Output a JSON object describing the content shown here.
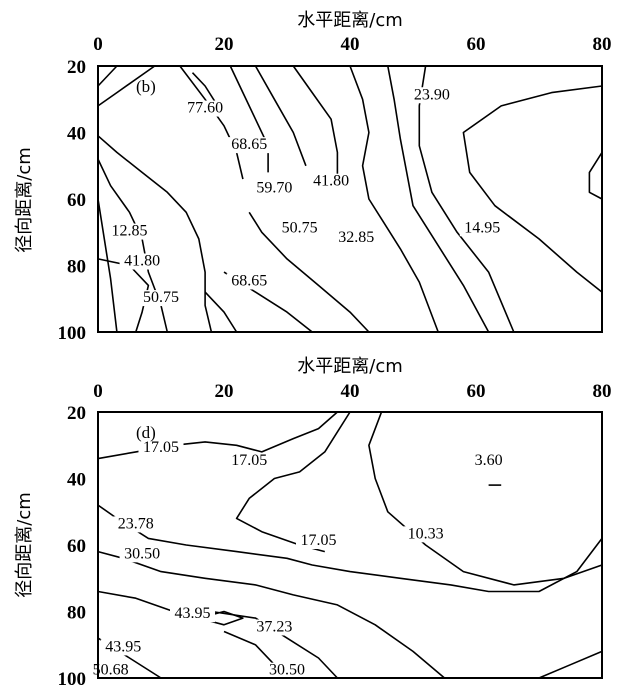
{
  "chart_data": [
    {
      "type": "contour",
      "panel_label": "(b)",
      "xlabel": "水平距离/cm",
      "ylabel": "径向距离/cm",
      "x_ticks": [
        "0",
        "20",
        "40",
        "60",
        "80"
      ],
      "y_ticks": [
        "20",
        "40",
        "60",
        "80",
        "100"
      ],
      "xlim": [
        0,
        80
      ],
      "ylim": [
        20,
        100
      ],
      "x_axis_position": "top",
      "y_inverted": true,
      "contour_labels": [
        {
          "text": "77.60",
          "x": 17,
          "y": 34
        },
        {
          "text": "68.65",
          "x": 24,
          "y": 45
        },
        {
          "text": "59.70",
          "x": 28,
          "y": 58
        },
        {
          "text": "41.80",
          "x": 37,
          "y": 56
        },
        {
          "text": "50.75",
          "x": 32,
          "y": 70
        },
        {
          "text": "32.85",
          "x": 41,
          "y": 73
        },
        {
          "text": "23.90",
          "x": 53,
          "y": 30
        },
        {
          "text": "14.95",
          "x": 61,
          "y": 70
        },
        {
          "text": "12.85",
          "x": 5,
          "y": 71
        },
        {
          "text": "41.80",
          "x": 7,
          "y": 80
        },
        {
          "text": "50.75",
          "x": 10,
          "y": 91
        },
        {
          "text": "68.65",
          "x": 24,
          "y": 86
        }
      ],
      "contours": [
        [
          [
            3,
            20
          ],
          [
            0,
            26
          ]
        ],
        [
          [
            9,
            20
          ],
          [
            3,
            28
          ],
          [
            0,
            32
          ]
        ],
        [
          [
            0,
            41
          ],
          [
            3,
            46
          ],
          [
            7,
            52
          ],
          [
            11,
            58
          ],
          [
            14,
            64
          ],
          [
            16,
            72
          ],
          [
            17,
            82
          ],
          [
            17,
            92
          ],
          [
            18,
            100
          ]
        ],
        [
          [
            0,
            48
          ],
          [
            2,
            56
          ],
          [
            5,
            64
          ],
          [
            7,
            72
          ],
          [
            8,
            82
          ],
          [
            10,
            92
          ],
          [
            11,
            100
          ]
        ],
        [
          [
            0,
            60
          ],
          [
            1,
            72
          ],
          [
            2,
            84
          ],
          [
            3,
            100
          ]
        ],
        [
          [
            13,
            20
          ],
          [
            17,
            30
          ],
          [
            20,
            38
          ],
          [
            22,
            46
          ],
          [
            23,
            54
          ]
        ],
        [
          [
            21,
            20
          ],
          [
            23,
            28
          ],
          [
            25,
            36
          ],
          [
            27,
            44
          ],
          [
            27,
            52
          ]
        ],
        [
          [
            25,
            20
          ],
          [
            28,
            30
          ],
          [
            31,
            40
          ],
          [
            33,
            50
          ]
        ],
        [
          [
            31,
            20
          ],
          [
            34,
            28
          ],
          [
            37,
            36
          ],
          [
            38,
            46
          ],
          [
            38,
            54
          ]
        ],
        [
          [
            40,
            20
          ],
          [
            42,
            30
          ],
          [
            43,
            40
          ],
          [
            42,
            50
          ],
          [
            43,
            60
          ],
          [
            48,
            75
          ],
          [
            51,
            85
          ],
          [
            54,
            100
          ]
        ],
        [
          [
            46,
            20
          ],
          [
            47,
            30
          ],
          [
            48,
            42
          ],
          [
            49,
            52
          ],
          [
            50,
            62
          ],
          [
            54,
            74
          ],
          [
            58,
            86
          ],
          [
            62,
            100
          ]
        ],
        [
          [
            52,
            20
          ],
          [
            51,
            32
          ],
          [
            51,
            44
          ],
          [
            53,
            58
          ],
          [
            57,
            70
          ],
          [
            62,
            82
          ],
          [
            66,
            100
          ]
        ],
        [
          [
            80,
            26
          ],
          [
            72,
            28
          ],
          [
            64,
            32
          ],
          [
            58,
            40
          ],
          [
            59,
            52
          ],
          [
            63,
            62
          ],
          [
            70,
            72
          ],
          [
            76,
            82
          ],
          [
            80,
            88
          ]
        ],
        [
          [
            80,
            46
          ],
          [
            78,
            52
          ],
          [
            78,
            58
          ],
          [
            80,
            60
          ]
        ],
        [
          [
            0,
            78
          ],
          [
            5,
            80
          ],
          [
            8,
            86
          ],
          [
            7,
            94
          ],
          [
            6,
            100
          ]
        ],
        [
          [
            17,
            88
          ],
          [
            20,
            94
          ],
          [
            22,
            100
          ]
        ],
        [
          [
            20,
            82
          ],
          [
            25,
            88
          ],
          [
            30,
            94
          ],
          [
            34,
            100
          ]
        ],
        [
          [
            24,
            64
          ],
          [
            26,
            70
          ],
          [
            30,
            78
          ],
          [
            35,
            86
          ],
          [
            40,
            94
          ],
          [
            43,
            100
          ]
        ],
        [
          [
            15,
            22
          ],
          [
            17,
            26
          ],
          [
            19,
            32
          ]
        ]
      ]
    },
    {
      "type": "contour",
      "panel_label": "(d)",
      "xlabel": "水平距离/cm",
      "ylabel": "径向距离/cm",
      "x_ticks": [
        "0",
        "20",
        "40",
        "60",
        "80"
      ],
      "y_ticks": [
        "20",
        "40",
        "60",
        "80",
        "100"
      ],
      "xlim": [
        0,
        80
      ],
      "ylim": [
        20,
        100
      ],
      "x_axis_position": "top",
      "y_inverted": true,
      "contour_labels": [
        {
          "text": "17.05",
          "x": 10,
          "y": 32
        },
        {
          "text": "17.05",
          "x": 24,
          "y": 36
        },
        {
          "text": "3.60",
          "x": 62,
          "y": 36
        },
        {
          "text": "23.78",
          "x": 6,
          "y": 55
        },
        {
          "text": "17.05",
          "x": 35,
          "y": 60
        },
        {
          "text": "10.33",
          "x": 52,
          "y": 58
        },
        {
          "text": "30.50",
          "x": 7,
          "y": 64
        },
        {
          "text": "43.95",
          "x": 15,
          "y": 82
        },
        {
          "text": "37.23",
          "x": 28,
          "y": 86
        },
        {
          "text": "43.95",
          "x": 4,
          "y": 92
        },
        {
          "text": "50.68",
          "x": 2,
          "y": 99
        },
        {
          "text": "30.50",
          "x": 30,
          "y": 99
        }
      ],
      "contours": [
        [
          [
            0,
            34
          ],
          [
            6,
            32
          ],
          [
            12,
            30
          ],
          [
            17,
            29
          ],
          [
            22,
            30
          ],
          [
            26,
            32
          ],
          [
            31,
            28
          ],
          [
            35,
            25
          ],
          [
            38,
            20
          ]
        ],
        [
          [
            0,
            48
          ],
          [
            3,
            52
          ],
          [
            8,
            58
          ],
          [
            14,
            60
          ],
          [
            22,
            62
          ],
          [
            30,
            64
          ],
          [
            34,
            66
          ],
          [
            40,
            68
          ],
          [
            48,
            70
          ],
          [
            56,
            72
          ],
          [
            62,
            74
          ],
          [
            70,
            74
          ],
          [
            76,
            68
          ],
          [
            80,
            58
          ]
        ],
        [
          [
            0,
            62
          ],
          [
            4,
            64
          ],
          [
            10,
            68
          ],
          [
            17,
            70
          ],
          [
            25,
            72
          ],
          [
            31,
            75
          ],
          [
            38,
            78
          ],
          [
            44,
            84
          ],
          [
            50,
            92
          ],
          [
            55,
            100
          ]
        ],
        [
          [
            0,
            74
          ],
          [
            6,
            76
          ],
          [
            12,
            80
          ],
          [
            18,
            80
          ],
          [
            25,
            82
          ],
          [
            30,
            88
          ],
          [
            35,
            94
          ],
          [
            38,
            100
          ]
        ],
        [
          [
            0,
            88
          ],
          [
            5,
            94
          ],
          [
            10,
            100
          ]
        ],
        [
          [
            16,
            82
          ],
          [
            20,
            80
          ],
          [
            23,
            82
          ],
          [
            20,
            84
          ],
          [
            16,
            82
          ]
        ],
        [
          [
            20,
            86
          ],
          [
            25,
            90
          ],
          [
            28,
            96
          ],
          [
            30,
            100
          ]
        ],
        [
          [
            40,
            20
          ],
          [
            38,
            26
          ],
          [
            36,
            32
          ],
          [
            32,
            38
          ],
          [
            28,
            40
          ],
          [
            24,
            46
          ],
          [
            22,
            52
          ],
          [
            26,
            56
          ],
          [
            32,
            60
          ],
          [
            36,
            62
          ]
        ],
        [
          [
            45,
            20
          ],
          [
            43,
            30
          ],
          [
            44,
            40
          ],
          [
            46,
            50
          ],
          [
            52,
            60
          ],
          [
            58,
            68
          ],
          [
            66,
            72
          ],
          [
            74,
            70
          ],
          [
            80,
            66
          ]
        ],
        [
          [
            80,
            60
          ],
          [
            80,
            100
          ]
        ],
        [
          [
            70,
            100
          ],
          [
            75,
            96
          ],
          [
            80,
            92
          ]
        ],
        [
          [
            62,
            42
          ],
          [
            64,
            42
          ]
        ]
      ]
    }
  ]
}
